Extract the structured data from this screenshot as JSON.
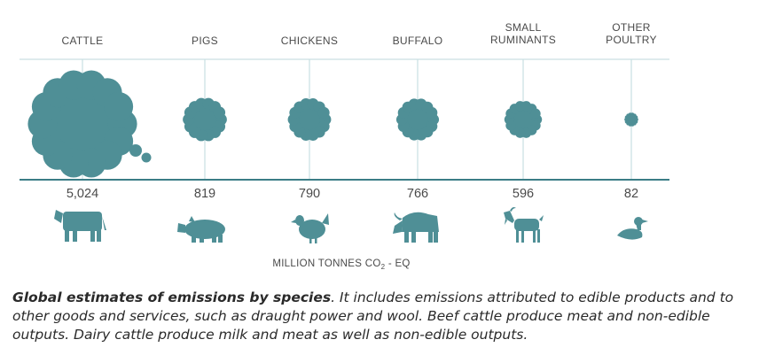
{
  "colors": {
    "accent": "#4f8f96",
    "gridline": "#c9dfe2",
    "baseline": "#3b7d86"
  },
  "chart_data": {
    "type": "bubble",
    "title": "",
    "categories": [
      "CATTLE",
      "PIGS",
      "CHICKENS",
      "BUFFALO",
      "SMALL RUMINANTS",
      "OTHER POULTRY"
    ],
    "category_label_lines": [
      [
        "CATTLE"
      ],
      [
        "PIGS"
      ],
      [
        "CHICKENS"
      ],
      [
        "BUFFALO"
      ],
      [
        "SMALL",
        "RUMINANTS"
      ],
      [
        "OTHER",
        "POULTRY"
      ]
    ],
    "values": [
      5024,
      819,
      790,
      766,
      596,
      82
    ],
    "value_labels": [
      "5,024",
      "819",
      "790",
      "766",
      "596",
      "82"
    ],
    "icons": [
      "cattle-icon",
      "pig-icon",
      "chicken-icon",
      "buffalo-icon",
      "goat-icon",
      "duck-icon"
    ],
    "unit_label": "MILLION TONNES CO",
    "unit_subscript": "2",
    "unit_suffix": " - EQ"
  },
  "caption": {
    "bold": "Global estimates of emissions by species",
    "text": ". It includes emissions attributed to edible products and to other goods and services, such as draught power and wool. Beef cattle produce meat and non-edible outputs. Dairy cattle produce milk and meat as well as non-edible outputs."
  }
}
